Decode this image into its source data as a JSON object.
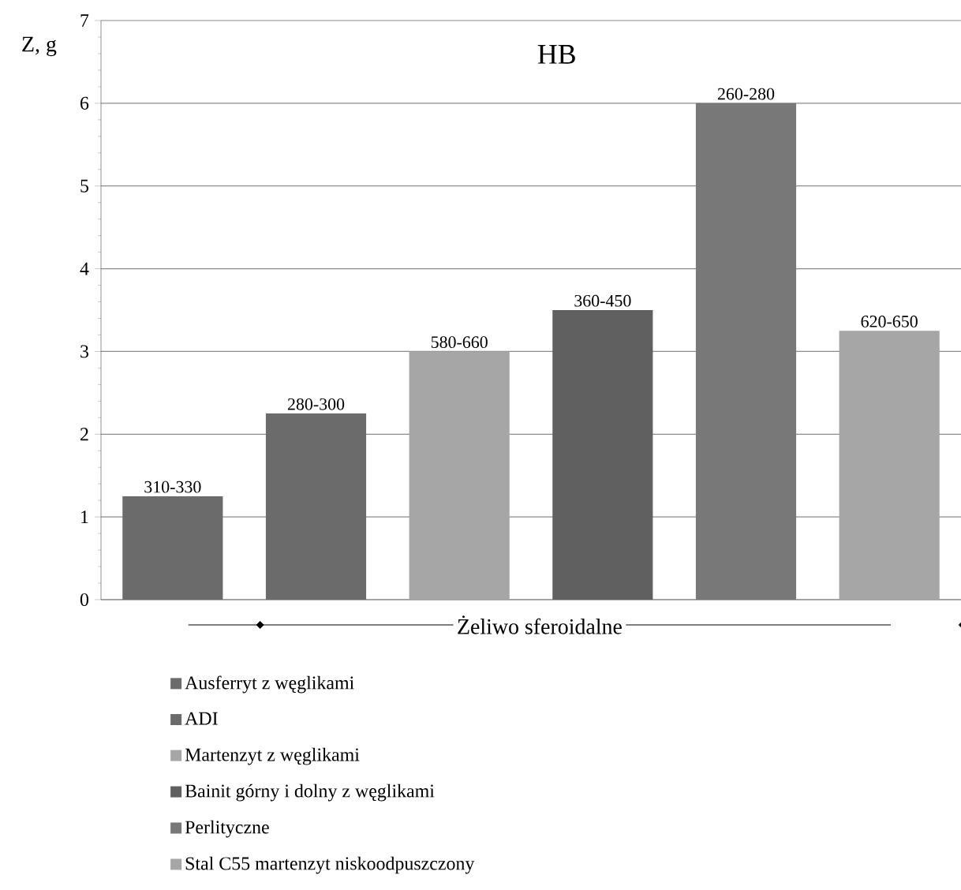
{
  "chart_data": {
    "type": "bar",
    "title": "HB",
    "ylabel": "Z, g",
    "categories": [
      null,
      null,
      null,
      null,
      null,
      null
    ],
    "series": [
      {
        "name": "Ausferryt z węglikami",
        "color": "#6b6b6b",
        "values": [
          1.25,
          null,
          null,
          null,
          null,
          null
        ],
        "value_labels": [
          "310-330",
          null,
          null,
          null,
          null,
          null
        ]
      },
      {
        "name": "ADI",
        "color": "#6b6b6b",
        "values": [
          null,
          2.25,
          null,
          null,
          null,
          null
        ],
        "value_labels": [
          null,
          "280-300",
          null,
          null,
          null,
          null
        ]
      },
      {
        "name": "Martenzyt z węglikami",
        "color": "#a6a6a6",
        "values": [
          null,
          null,
          3.0,
          null,
          null,
          null
        ],
        "value_labels": [
          null,
          null,
          "580-660",
          null,
          null,
          null
        ]
      },
      {
        "name": "Bainit górny i dolny z węglikami",
        "color": "#606060",
        "values": [
          null,
          null,
          null,
          3.5,
          null,
          null
        ],
        "value_labels": [
          null,
          null,
          null,
          "360-450",
          null,
          null
        ]
      },
      {
        "name": "Perlityczne",
        "color": "#787878",
        "values": [
          null,
          null,
          null,
          null,
          6.0,
          null
        ],
        "value_labels": [
          null,
          null,
          null,
          null,
          "260-280",
          null
        ]
      },
      {
        "name": "Stal C55 martenzyt niskoodpuszczony",
        "color": "#a6a6a6",
        "values": [
          null,
          null,
          null,
          null,
          null,
          3.25
        ],
        "value_labels": [
          null,
          null,
          null,
          null,
          null,
          "620-650"
        ]
      }
    ],
    "annotations": [
      "Żeliwo sferoidalne"
    ],
    "ylim": [
      0,
      7
    ],
    "yticks": [
      0,
      1,
      2,
      3,
      4,
      5,
      6,
      7
    ],
    "grid": "y",
    "legend": "bottom"
  }
}
